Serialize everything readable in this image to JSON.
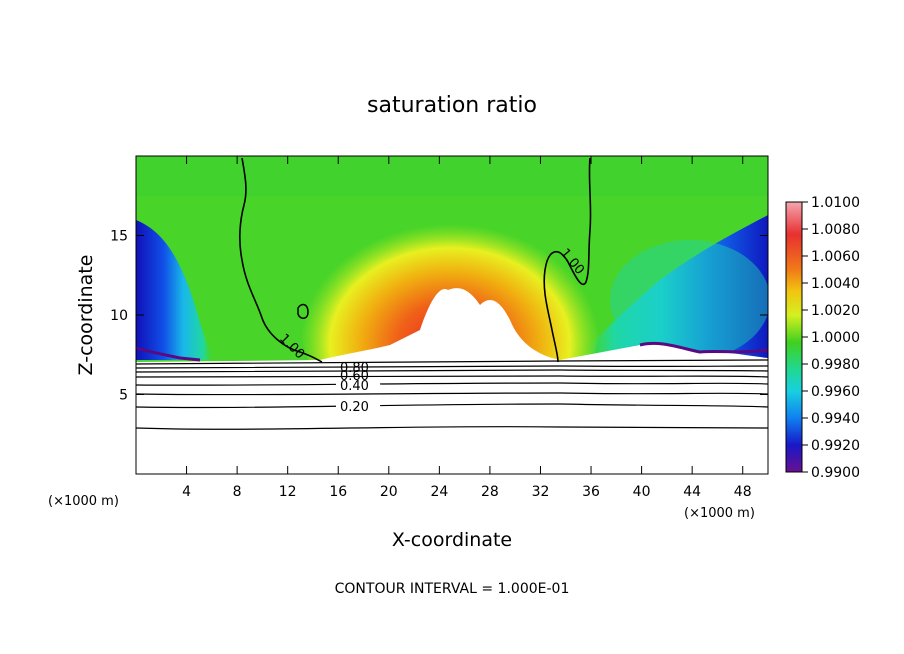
{
  "chart_data": {
    "type": "heatmap",
    "title": "saturation ratio",
    "xlabel": "X-coordinate",
    "ylabel": "Z-coordinate",
    "x_unit": "(×1000 m)",
    "xlim": [
      0,
      50
    ],
    "ylim": [
      0,
      20
    ],
    "x_ticks": [
      4,
      8,
      12,
      16,
      20,
      24,
      28,
      32,
      36,
      40,
      44,
      48
    ],
    "y_ticks": [
      5,
      10,
      15
    ],
    "colorbar": {
      "min": 0.99,
      "max": 1.01,
      "labels": [
        "1.0100",
        "1.0080",
        "1.0060",
        "1.0040",
        "1.0020",
        "1.0000",
        "0.9980",
        "0.9960",
        "0.9940",
        "0.9920",
        "0.9900"
      ],
      "colors": [
        "#f2a0a8",
        "#e83030",
        "#f07a18",
        "#f0c010",
        "#e8f020",
        "#60d820",
        "#22d8a0",
        "#18c8e0",
        "#1080f0",
        "#1818c8",
        "#6a1090"
      ]
    },
    "contour_labels": [
      "1.00",
      "1.00",
      "0.80",
      "0.60",
      "0.40",
      "0.20"
    ],
    "contour_levels_lower": [
      0.2,
      0.4,
      0.6,
      0.8,
      1.0
    ],
    "footer": "CONTOUR INTERVAL = 1.000E-01"
  }
}
